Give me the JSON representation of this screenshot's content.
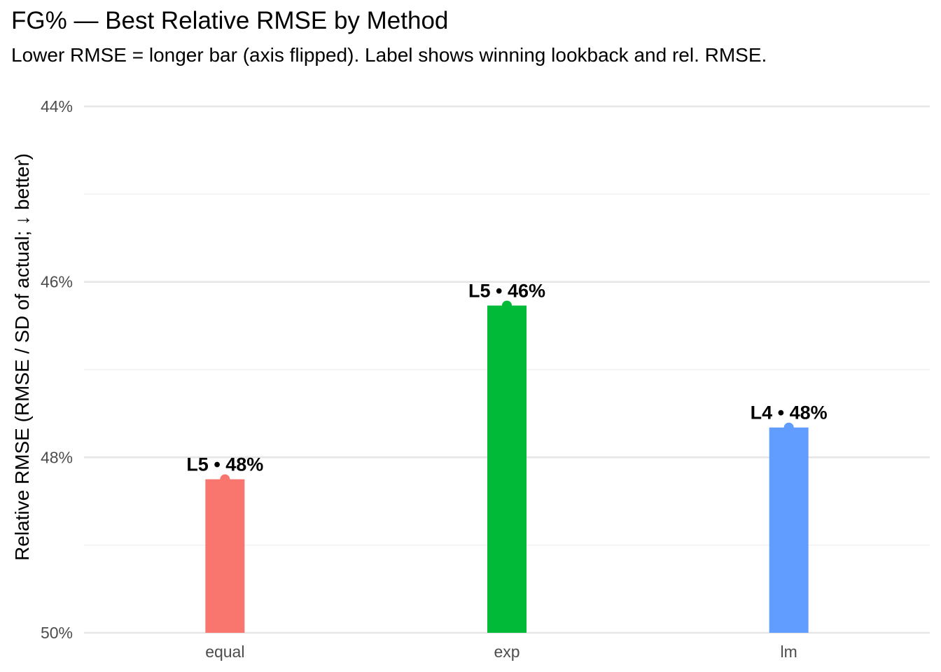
{
  "chart_data": {
    "type": "bar",
    "title": "FG% — Best Relative RMSE by Method",
    "subtitle": "Lower RMSE = longer bar (axis flipped). Label shows winning lookback and rel. RMSE.",
    "xlabel": "",
    "ylabel": "Relative RMSE (RMSE / SD of actual; ↓ better)",
    "y_reversed": true,
    "ylim": [
      44,
      50
    ],
    "y_ticks": [
      44,
      46,
      48,
      50
    ],
    "y_tick_labels": [
      "44%",
      "46%",
      "48%",
      "50%"
    ],
    "y_minor_ticks": [
      45,
      47,
      49
    ],
    "grid": true,
    "legend": "none",
    "categories": [
      "equal",
      "exp",
      "lm"
    ],
    "values": [
      48.25,
      46.27,
      47.66
    ],
    "labels": [
      "L5 • 48%",
      "L5 • 46%",
      "L4 • 48%"
    ],
    "colors": [
      "#F8766D",
      "#00BA38",
      "#619CFF"
    ]
  }
}
